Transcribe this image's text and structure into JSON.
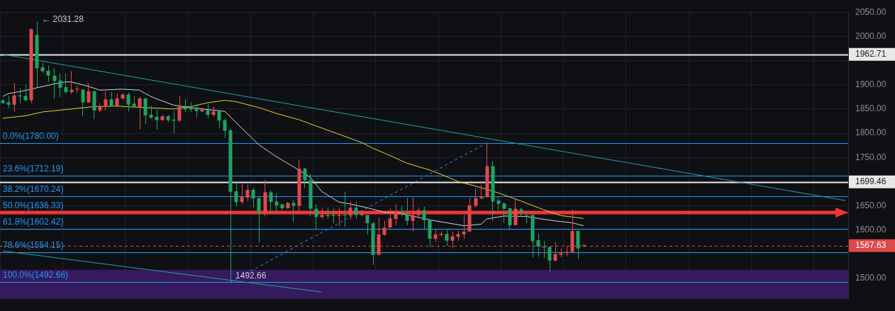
{
  "chart_data": {
    "type": "candlestick",
    "categories": [
      null,
      null,
      null,
      null,
      null,
      null,
      null,
      null,
      null,
      null,
      null,
      null,
      null,
      null,
      null,
      null,
      null,
      null,
      null,
      null,
      null,
      null,
      null,
      null,
      null,
      null,
      null,
      null,
      null,
      null,
      null,
      null,
      null,
      null,
      null,
      null,
      null,
      null,
      null,
      null,
      null,
      null,
      null,
      null,
      null,
      null,
      null,
      null,
      null,
      null,
      null,
      null,
      null,
      null,
      null,
      null,
      null,
      null,
      null,
      null,
      null,
      null,
      null,
      null,
      null,
      null,
      null,
      null,
      null,
      null,
      null,
      null,
      null,
      null,
      null,
      null,
      null,
      null,
      null,
      null,
      null,
      null,
      null,
      null,
      null,
      null,
      null,
      null,
      null,
      null,
      null,
      null,
      null,
      null,
      null,
      null,
      null,
      null,
      null,
      null,
      null,
      null,
      null,
      null,
      null,
      null,
      null,
      null,
      null,
      null,
      null,
      null,
      null,
      null,
      null,
      null,
      null,
      null,
      null,
      null,
      null,
      null,
      null,
      null,
      null,
      null,
      null,
      null,
      null,
      null,
      null,
      null,
      null,
      null,
      null,
      null,
      null,
      null,
      null,
      null,
      null,
      null,
      null,
      null,
      null,
      null,
      null,
      null,
      null
    ],
    "ohlc": [
      [
        1862,
        1871,
        1861,
        1868
      ],
      [
        1859,
        1877,
        1853,
        1864
      ],
      [
        1878,
        1904,
        1845,
        1859
      ],
      [
        1876,
        1893,
        1862,
        1878
      ],
      [
        1868,
        1900,
        1866,
        1877
      ],
      [
        2015,
        2016,
        1862,
        1868
      ],
      [
        1934,
        2031.28,
        1895,
        2003
      ],
      [
        1928,
        1945,
        1925,
        1936
      ],
      [
        1919,
        1940,
        1907,
        1929
      ],
      [
        1908,
        1934,
        1872,
        1919
      ],
      [
        1894,
        1923,
        1875,
        1909
      ],
      [
        1885,
        1923,
        1881,
        1895
      ],
      [
        1890,
        1928,
        1881,
        1885
      ],
      [
        1892,
        1898,
        1883,
        1890
      ],
      [
        1864,
        1891,
        1835,
        1890
      ],
      [
        1887,
        1903,
        1862,
        1864
      ],
      [
        1847,
        1887,
        1829,
        1887
      ],
      [
        1856,
        1862,
        1843,
        1847
      ],
      [
        1870,
        1886,
        1847,
        1856
      ],
      [
        1856,
        1885,
        1855,
        1870
      ],
      [
        1872,
        1882,
        1854,
        1857
      ],
      [
        1880,
        1882,
        1868,
        1872
      ],
      [
        1859,
        1884,
        1845,
        1880
      ],
      [
        1855,
        1877,
        1853,
        1861
      ],
      [
        1872,
        1875,
        1808,
        1854
      ],
      [
        1837,
        1873,
        1819,
        1872
      ],
      [
        1832,
        1857,
        1830,
        1838
      ],
      [
        1827,
        1849,
        1808,
        1834
      ],
      [
        1835,
        1838,
        1826,
        1827
      ],
      [
        1827,
        1838,
        1823,
        1835
      ],
      [
        1826,
        1846,
        1799,
        1828
      ],
      [
        1855,
        1877,
        1824,
        1826
      ],
      [
        1849,
        1871,
        1844,
        1853
      ],
      [
        1849,
        1864,
        1844,
        1854
      ],
      [
        1846,
        1857,
        1833,
        1852
      ],
      [
        1849,
        1852,
        1844,
        1845
      ],
      [
        1838,
        1860,
        1832,
        1848
      ],
      [
        1845,
        1855,
        1835,
        1838
      ],
      [
        1826,
        1848,
        1810,
        1845
      ],
      [
        1805,
        1830,
        1791,
        1827
      ],
      [
        1679,
        1809,
        1492.66,
        1806
      ],
      [
        1658,
        1698,
        1650,
        1680
      ],
      [
        1668,
        1695,
        1653,
        1658
      ],
      [
        1683,
        1694,
        1659,
        1667
      ],
      [
        1665,
        1687,
        1646,
        1683
      ],
      [
        1635,
        1668,
        1574,
        1666
      ],
      [
        1678,
        1703,
        1628,
        1635
      ],
      [
        1658,
        1682,
        1635,
        1678
      ],
      [
        1651,
        1676,
        1635,
        1659
      ],
      [
        1645,
        1655,
        1641,
        1653
      ],
      [
        1656,
        1658,
        1644,
        1645
      ],
      [
        1650,
        1663,
        1617,
        1656
      ],
      [
        1727,
        1746,
        1639,
        1650
      ],
      [
        1703,
        1729,
        1687,
        1727
      ],
      [
        1644,
        1716,
        1628,
        1703
      ],
      [
        1627,
        1653,
        1602,
        1644
      ],
      [
        1631,
        1646,
        1623,
        1627
      ],
      [
        1629,
        1647,
        1623,
        1631
      ],
      [
        1629,
        1645,
        1614,
        1631
      ],
      [
        1631,
        1646,
        1608,
        1629
      ],
      [
        1630,
        1679,
        1606,
        1631
      ],
      [
        1646,
        1659,
        1621,
        1630
      ],
      [
        1631,
        1658,
        1623,
        1646
      ],
      [
        1635,
        1639,
        1628,
        1631
      ],
      [
        1614,
        1631,
        1590,
        1631
      ],
      [
        1549,
        1617,
        1528,
        1614
      ],
      [
        1591,
        1626,
        1548,
        1549
      ],
      [
        1605,
        1619,
        1588,
        1590
      ],
      [
        1624,
        1644,
        1605,
        1605
      ],
      [
        1639,
        1653,
        1609,
        1623
      ],
      [
        1636,
        1650,
        1628,
        1639
      ],
      [
        1619,
        1666,
        1610,
        1631
      ],
      [
        1631,
        1668,
        1597,
        1619
      ],
      [
        1641,
        1647,
        1626,
        1631
      ],
      [
        1620,
        1648,
        1602,
        1641
      ],
      [
        1582,
        1623,
        1565,
        1621
      ],
      [
        1591,
        1601,
        1575,
        1582
      ],
      [
        1592,
        1597,
        1586,
        1590
      ],
      [
        1578,
        1600,
        1567,
        1592
      ],
      [
        1587,
        1597,
        1562,
        1578
      ],
      [
        1592,
        1599,
        1578,
        1586
      ],
      [
        1597,
        1631,
        1582,
        1591
      ],
      [
        1651,
        1667,
        1597,
        1597
      ],
      [
        1666,
        1686,
        1647,
        1650
      ],
      [
        1668,
        1693,
        1664,
        1665
      ],
      [
        1732,
        1780,
        1667,
        1668
      ],
      [
        1659,
        1743,
        1619,
        1732
      ],
      [
        1654,
        1668,
        1642,
        1661
      ],
      [
        1644,
        1657,
        1615,
        1655
      ],
      [
        1610,
        1646,
        1601,
        1645
      ],
      [
        1644,
        1664,
        1610,
        1610
      ],
      [
        1637,
        1646,
        1628,
        1643
      ],
      [
        1629,
        1640,
        1614,
        1630
      ],
      [
        1577,
        1632,
        1544,
        1631
      ],
      [
        1566,
        1593,
        1545,
        1579
      ],
      [
        1564,
        1577,
        1542,
        1566
      ],
      [
        1537,
        1567,
        1514,
        1565
      ],
      [
        1550,
        1575,
        1535,
        1537
      ],
      [
        1552,
        1562,
        1544,
        1549
      ],
      [
        1555,
        1567,
        1546,
        1553
      ],
      [
        1598,
        1642,
        1553,
        1555
      ],
      [
        1562,
        1599,
        1540,
        1598
      ],
      [
        1569,
        1571,
        1564,
        1567.63
      ],
      null,
      null,
      null,
      null,
      null,
      null,
      null,
      null,
      null,
      null,
      null,
      null,
      null,
      null,
      null,
      null,
      null,
      null,
      null,
      null,
      null,
      null,
      null,
      null,
      null,
      null,
      null,
      null,
      null,
      null,
      null,
      null,
      null,
      null,
      null,
      null,
      null,
      null,
      null,
      null,
      null,
      null,
      null,
      null,
      null,
      null
    ],
    "colors": [
      "#1fa463",
      "#1fa463",
      "#e04a4a",
      "#1fa463",
      "#1fa463",
      "#e04a4a",
      "#1fa463",
      "#1fa463",
      "#1fa463",
      "#1fa463",
      "#1fa463",
      "#1fa463",
      "#e04a4a",
      "#e04a4a",
      "#1fa463",
      "#e04a4a",
      "#1fa463",
      "#e04a4a",
      "#e04a4a",
      "#1fa463",
      "#e04a4a",
      "#e04a4a",
      "#1fa463",
      "#1fa463",
      "#e04a4a",
      "#1fa463",
      "#1fa463",
      "#1fa463",
      "#e04a4a",
      "#1fa463",
      "#1fa463",
      "#e04a4a",
      "#1fa463",
      "#1fa463",
      "#1fa463",
      "#e04a4a",
      "#1fa463",
      "#e04a4a",
      "#1fa463",
      "#1fa463",
      "#1fa463",
      "#1fa463",
      "#e04a4a",
      "#e04a4a",
      "#1fa463",
      "#1fa463",
      "#e04a4a",
      "#1fa463",
      "#1fa463",
      "#1fa463",
      "#e04a4a",
      "#1fa463",
      "#e04a4a",
      "#1fa463",
      "#1fa463",
      "#1fa463",
      "#e04a4a",
      "#1fa463",
      "#1fa463",
      "#e04a4a",
      "#1fa463",
      "#e04a4a",
      "#1fa463",
      "#e04a4a",
      "#1fa463",
      "#1fa463",
      "#e04a4a",
      "#e04a4a",
      "#e04a4a",
      "#e04a4a",
      "#1fa463",
      "#1fa463",
      "#e04a4a",
      "#e04a4a",
      "#1fa463",
      "#1fa463",
      "#e04a4a",
      "#e04a4a",
      "#1fa463",
      "#e04a4a",
      "#e04a4a",
      "#e04a4a",
      "#e04a4a",
      "#e04a4a",
      "#e04a4a",
      "#e04a4a",
      "#1fa463",
      "#1fa463",
      "#1fa463",
      "#1fa463",
      "#e04a4a",
      "#1fa463",
      "#1fa463",
      "#1fa463",
      "#1fa463",
      "#1fa463",
      "#1fa463",
      "#e04a4a",
      "#e04a4a",
      "#e04a4a",
      "#e04a4a",
      "#1fa463",
      "#e04a4a",
      null,
      null,
      null,
      null,
      null,
      null,
      null,
      null,
      null,
      null,
      null,
      null,
      null,
      null,
      null,
      null,
      null,
      null,
      null,
      null,
      null,
      null,
      null,
      null,
      null,
      null,
      null,
      null,
      null,
      null,
      null,
      null,
      null,
      null,
      null,
      null,
      null,
      null,
      null,
      null,
      null,
      null,
      null,
      null,
      null,
      null
    ],
    "series": [
      {
        "type": "line",
        "color": "#d1d4dc",
        "values": [
          1876,
          1882,
          null,
          1886,
          null,
          1891,
          1894,
          null,
          1899,
          1902,
          null,
          1906,
          1906,
          1903,
          null,
          1897,
          null,
          1889,
          null,
          null,
          null,
          1891,
          null,
          null,
          1889,
          1882,
          1876,
          1871,
          null,
          null,
          1858,
          null,
          null,
          1853,
          null,
          null,
          null,
          null,
          null,
          1845,
          null,
          null,
          1810,
          null,
          null,
          1776,
          null,
          null,
          1752,
          null,
          null,
          1731,
          null,
          null,
          1709,
          null,
          1680,
          null,
          null,
          1658,
          null,
          1654,
          null,
          null,
          1646,
          null,
          null,
          1637,
          null,
          1636,
          null,
          null,
          1629,
          null,
          null,
          1621,
          null,
          null,
          1615,
          null,
          null,
          1609,
          null,
          null,
          1612,
          1623,
          null,
          null,
          1629,
          null,
          null,
          null,
          1628,
          null,
          1624,
          null,
          null,
          1619,
          null,
          null,
          1615,
          null,
          1609,
          null,
          null,
          null,
          null,
          null,
          null,
          null,
          null,
          null,
          null,
          null,
          null,
          null,
          null,
          null,
          null,
          null,
          null,
          null,
          null,
          null,
          null,
          null,
          null,
          null,
          null,
          null,
          null,
          null,
          null,
          null,
          null,
          null,
          null,
          null,
          null,
          null,
          null,
          null,
          null,
          null,
          null,
          null,
          null,
          null,
          null
        ]
      },
      {
        "type": "line",
        "color": "#e6d22c",
        "values": [
          1831,
          null,
          null,
          null,
          1836,
          null,
          null,
          1844,
          null,
          null,
          null,
          null,
          1850,
          null,
          null,
          null,
          1855,
          null,
          null,
          null,
          1856,
          null,
          null,
          null,
          null,
          1853,
          null,
          null,
          null,
          null,
          1850,
          null,
          null,
          1855,
          null,
          null,
          1863,
          null,
          null,
          1868,
          null,
          1865,
          null,
          null,
          null,
          1853,
          null,
          null,
          1841,
          null,
          null,
          null,
          1828,
          null,
          null,
          null,
          null,
          null,
          null,
          null,
          null,
          null,
          null,
          1781,
          null,
          1769,
          null,
          null,
          1754,
          null,
          null,
          1738,
          null,
          null,
          null,
          1724,
          null,
          1715,
          null,
          null,
          1700,
          null,
          null,
          1691,
          null,
          null,
          null,
          1677,
          null,
          null,
          null,
          1660,
          null,
          null,
          null,
          1642,
          null,
          null,
          1630,
          null,
          null,
          null,
          1624,
          null,
          null,
          null,
          null,
          null,
          null,
          null,
          null,
          null,
          null,
          null,
          null,
          null,
          null,
          null,
          null,
          null,
          null,
          null,
          null,
          null,
          null,
          null,
          null,
          null,
          null,
          null,
          null,
          null,
          null,
          null,
          null,
          null,
          null,
          null,
          null,
          null,
          null,
          null,
          null,
          null,
          null,
          null,
          null,
          null,
          null
        ]
      },
      {
        "type": "line",
        "color": "#1fa3a3",
        "values": [
          1963,
          null,
          null,
          null,
          null,
          null,
          null,
          null,
          null,
          null,
          null,
          null,
          null,
          null,
          null,
          null,
          null,
          null,
          null,
          null,
          null,
          null,
          null,
          null,
          null,
          null,
          null,
          null,
          null,
          null,
          null,
          null,
          null,
          null,
          null,
          null,
          null,
          null,
          null,
          null,
          null,
          null,
          null,
          null,
          null,
          null,
          null,
          null,
          null,
          null,
          null,
          null,
          null,
          null,
          null,
          null,
          null,
          null,
          null,
          null,
          null,
          null,
          null,
          null,
          null,
          null,
          null,
          null,
          null,
          null,
          null,
          null,
          null,
          null,
          null,
          null,
          null,
          null,
          null,
          null,
          null,
          null,
          null,
          null,
          null,
          null,
          null,
          null,
          null,
          null,
          null,
          null,
          null,
          null,
          null,
          null,
          null,
          null,
          null,
          null,
          null,
          null,
          null,
          null,
          null,
          null,
          null,
          null,
          null,
          null,
          null,
          null,
          null,
          null,
          null,
          null,
          null,
          null,
          null,
          null,
          null,
          null,
          null,
          null,
          null,
          null,
          null,
          null,
          null,
          null,
          null,
          null,
          null,
          null,
          null,
          null,
          null,
          null,
          null,
          null,
          null,
          null,
          null,
          null,
          null,
          null,
          null,
          null,
          1661
        ]
      },
      {
        "type": "line",
        "color": "#1fa3a3",
        "values": [
          1557,
          null,
          null,
          null,
          null,
          null,
          null,
          null,
          null,
          null,
          null,
          null,
          null,
          null,
          null,
          null,
          null,
          null,
          null,
          null,
          null,
          null,
          null,
          null,
          null,
          null,
          null,
          null,
          null,
          null,
          null,
          null,
          null,
          null,
          null,
          null,
          null,
          null,
          null,
          null,
          null,
          null,
          null,
          null,
          null,
          null,
          null,
          null,
          null,
          null,
          null,
          null,
          null,
          null,
          null,
          null,
          1472,
          null,
          null,
          null,
          null,
          null,
          null,
          null,
          null,
          null,
          null,
          null,
          null,
          null,
          null,
          null,
          null,
          null,
          null,
          null,
          null,
          null,
          null,
          null,
          null,
          null,
          null,
          null,
          null,
          null,
          null,
          null,
          null,
          null,
          null,
          null,
          null,
          null,
          null,
          null,
          null,
          null,
          null,
          null,
          null,
          null,
          null,
          null,
          null,
          null,
          null,
          null,
          null,
          null,
          null,
          null,
          null,
          null,
          null,
          null,
          null,
          null,
          null,
          null,
          null,
          null,
          null,
          null,
          null,
          null,
          null,
          null,
          null,
          null,
          null,
          null,
          null,
          null,
          null,
          null,
          null,
          null,
          null,
          null,
          null,
          null,
          null,
          null,
          null,
          null,
          null,
          null,
          null
        ]
      },
      {
        "type": "line",
        "color": "#3d8bef",
        "line_style": "dashed",
        "values": [
          null,
          null,
          null,
          null,
          null,
          null,
          null,
          null,
          null,
          null,
          null,
          null,
          null,
          null,
          null,
          null,
          null,
          null,
          null,
          null,
          null,
          null,
          null,
          null,
          null,
          null,
          null,
          null,
          null,
          null,
          null,
          null,
          null,
          null,
          null,
          null,
          null,
          null,
          null,
          null,
          1492.66,
          null,
          null,
          null,
          null,
          null,
          null,
          null,
          null,
          null,
          null,
          null,
          null,
          null,
          null,
          null,
          null,
          null,
          null,
          null,
          null,
          null,
          null,
          null,
          null,
          null,
          null,
          null,
          null,
          null,
          null,
          null,
          null,
          null,
          null,
          null,
          null,
          null,
          null,
          null,
          null,
          null,
          null,
          null,
          null,
          1780,
          null,
          null,
          null,
          null,
          null,
          null,
          null,
          null,
          null,
          null,
          null,
          null,
          null,
          null,
          null,
          null,
          null,
          null,
          null,
          null,
          null,
          null,
          null,
          null,
          null,
          null,
          null,
          null,
          null,
          null,
          null,
          null,
          null,
          null,
          null,
          null,
          null,
          null,
          null,
          null,
          null,
          null,
          null,
          null,
          null,
          null,
          null,
          null,
          null,
          null,
          null,
          null,
          null,
          null,
          null,
          null,
          null,
          null,
          null,
          null,
          null,
          null,
          null
        ]
      }
    ],
    "ylim": [
      1458,
      2050
    ],
    "yticks": [
      {
        "value": 1500,
        "label": "1500.00"
      },
      {
        "value": 1550,
        "label": null
      },
      {
        "value": 1600,
        "label": "1600.00"
      },
      {
        "value": 1650,
        "label": "1650.00"
      },
      {
        "value": 1750,
        "label": "1750.00"
      },
      {
        "value": 1800,
        "label": "1800.00"
      },
      {
        "value": 1850,
        "label": "1850.00"
      },
      {
        "value": 1900,
        "label": "1900.00"
      },
      {
        "value": 1950,
        "label": null
      },
      {
        "value": 2000,
        "label": "2000.00"
      },
      {
        "value": 2050,
        "label": "2050.00"
      }
    ],
    "tick_labels": "y",
    "grid": true,
    "bands": [
      {
        "axis": "y",
        "from": 1458,
        "to": 1518,
        "color": "#361a5e"
      }
    ],
    "ref_lines": [
      {
        "axis": "y",
        "value": 1780,
        "color": "#2196f3"
      },
      {
        "axis": "y",
        "value": 1712.19,
        "color": "#2196f3"
      },
      {
        "axis": "y",
        "value": 1670.24,
        "color": "#2196f3"
      },
      {
        "axis": "y",
        "value": 1636.33,
        "color": "#2196f3"
      },
      {
        "axis": "y",
        "value": 1602.42,
        "color": "#2196f3"
      },
      {
        "axis": "y",
        "value": 1554.15,
        "color": "#2196f3"
      },
      {
        "axis": "y",
        "value": 1492.66,
        "color": "#2196f3"
      },
      {
        "axis": "y",
        "value": 1962.71,
        "label": "1962.71",
        "color": "#e8e8e8"
      },
      {
        "axis": "y",
        "value": 1699.46,
        "label": "1699.46",
        "color": "#e8e8e8"
      },
      {
        "axis": "y",
        "value": 1567.63,
        "label": "1567.63",
        "color": "#e04848",
        "line_style": "dashed"
      }
    ],
    "annotations": [
      "← 2031.28",
      "1492.66",
      {
        "text": "0.0%(1780.00)",
        "y": 1780
      },
      {
        "text": "23.6%(1712.19)",
        "y": 1712.19
      },
      {
        "text": "38.2%(1670.24)",
        "y": 1670.24
      },
      {
        "text": "50.0%(1636.33)",
        "y": 1636.33
      },
      {
        "text": "61.8%(1602.42)",
        "y": 1602.42
      },
      {
        "text": "78.6%(1554.15)",
        "y": 1554.15
      },
      {
        "text": "100.0%(1492.66)",
        "y": 1492.66
      }
    ]
  }
}
